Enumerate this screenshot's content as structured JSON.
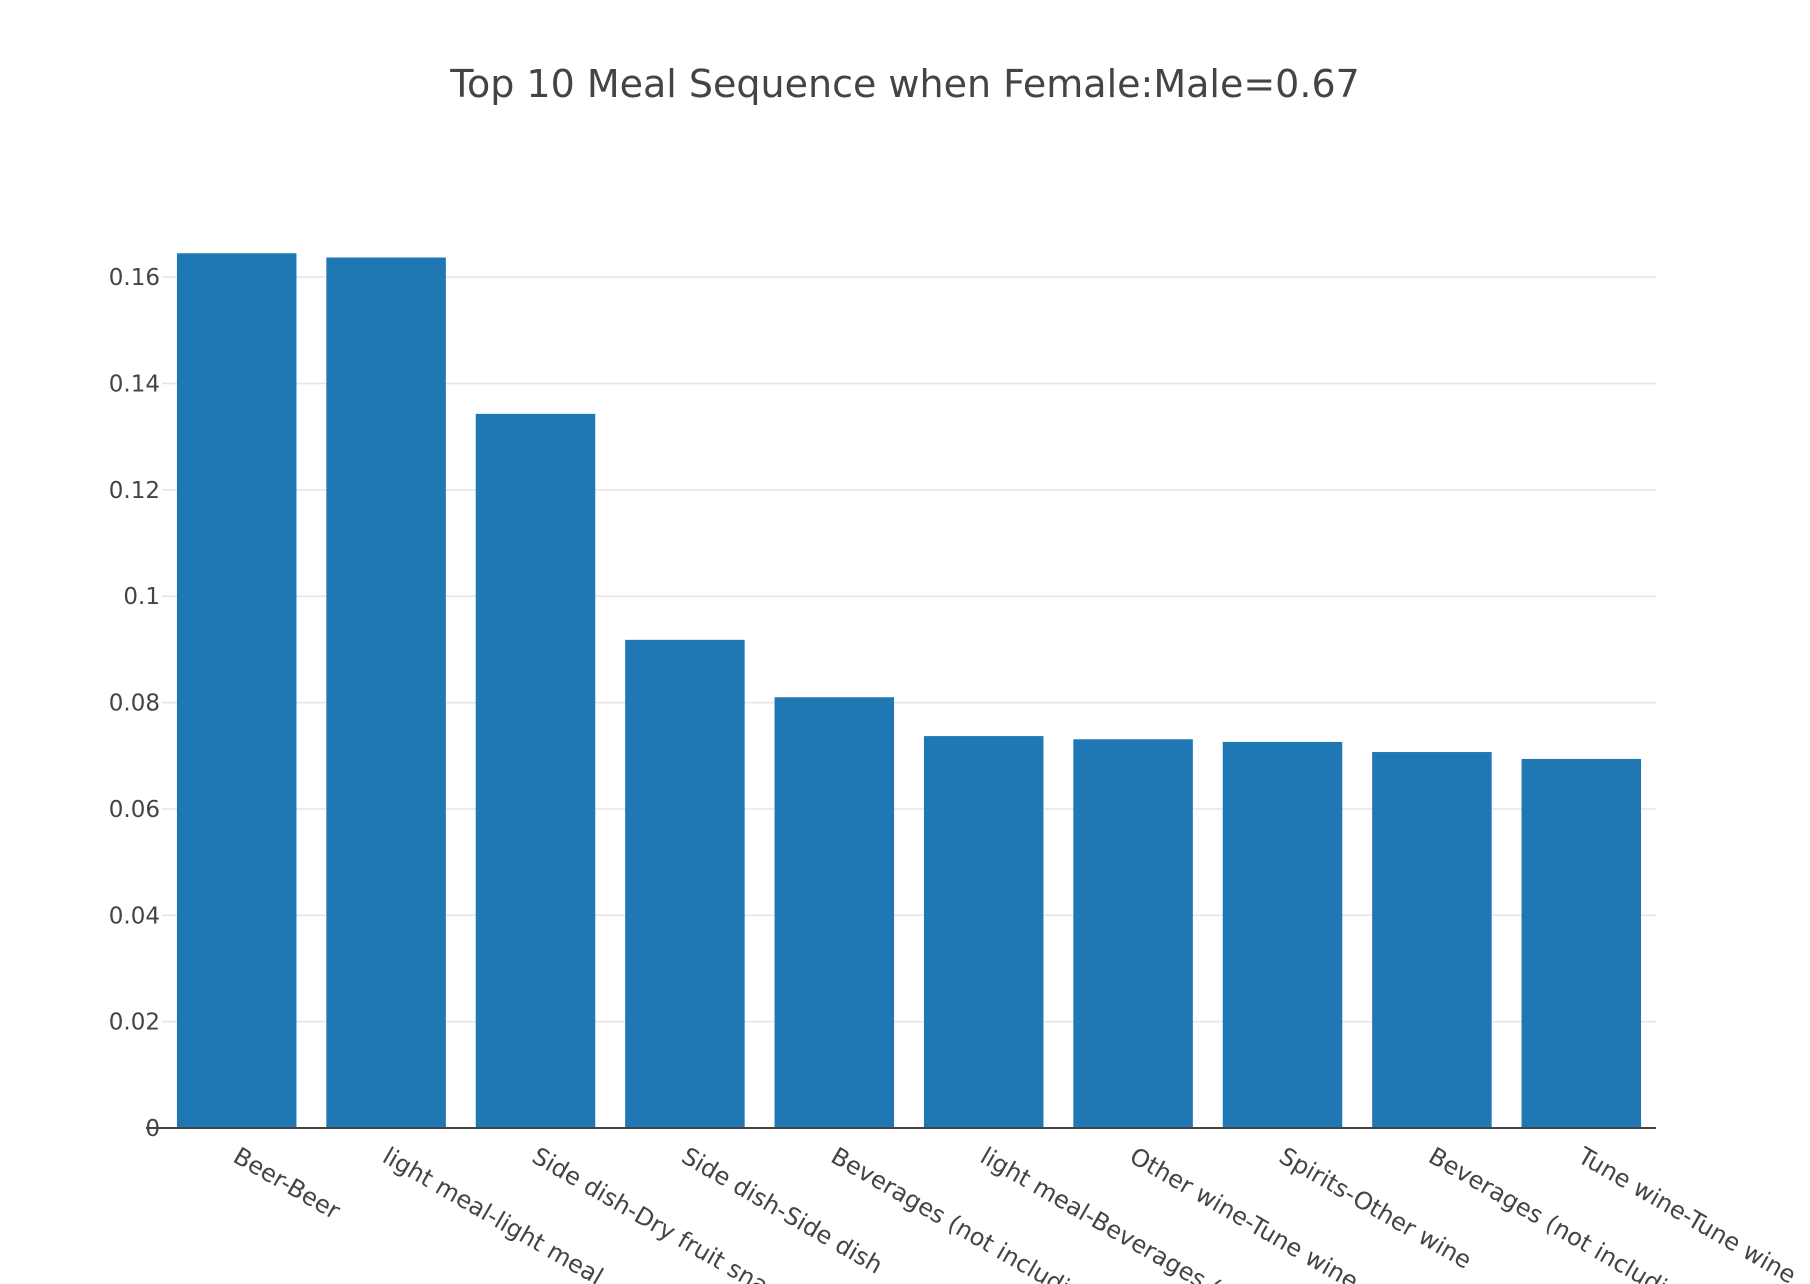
{
  "chart_data": {
    "type": "bar",
    "title": "Top 10 Meal Sequence when Female:Male=0.67",
    "xlabel": "",
    "ylabel": "",
    "categories": [
      "Beer-Beer",
      "light meal-light meal",
      "Side dish-Dry fruit snack",
      "Side dish-Side dish",
      "Beverages (not including",
      "light meal-Beverages (n",
      "Other wine-Tune wine",
      "Spirits-Other wine",
      "Beverages (not including",
      "Tune wine-Tune wine"
    ],
    "values": [
      0.1645,
      0.1637,
      0.1343,
      0.0918,
      0.081,
      0.0737,
      0.0731,
      0.0726,
      0.0707,
      0.0694
    ],
    "ylim": [
      0,
      0.17
    ],
    "yticks": [
      0,
      0.02,
      0.04,
      0.06,
      0.08,
      0.1,
      0.12,
      0.14,
      0.16
    ],
    "ytick_labels": [
      "0",
      "0.02",
      "0.04",
      "0.06",
      "0.08",
      "0.1",
      "0.12",
      "0.14",
      "0.16"
    ],
    "grid": true,
    "legend": "none",
    "bar_color": "#1f77b4",
    "grid_color": "#e5e5e5",
    "axis_color": "#444444",
    "text_color": "#444444"
  }
}
